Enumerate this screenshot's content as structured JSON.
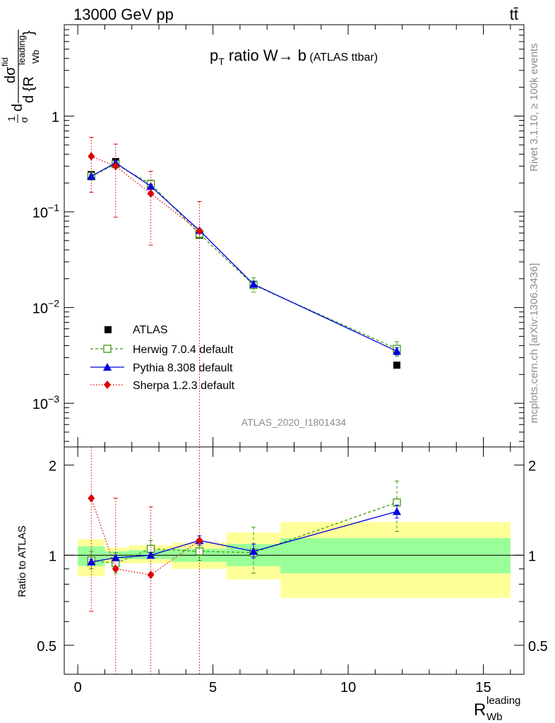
{
  "header": {
    "left": "13000 GeV pp",
    "right": "tt̄"
  },
  "side_labels": {
    "rivet": "Rivet 3.1.10, ≥ 100k events",
    "mcplots": "mcplots.cern.ch [arXiv:1306.3436]"
  },
  "chart_data": [
    {
      "type": "scatter",
      "panel": "main",
      "title_parts": {
        "p": "p",
        "sub": "T",
        "rest": " ratio W",
        "arrow": "→",
        "b": " b",
        "small": " (ATLAS ttbar)"
      },
      "ylabel_parts": {
        "frac1": "1",
        "sigma": "σ",
        "d": "d",
        "dsig": "dσ",
        "fid": "fid",
        "den": "d {R",
        "sub": "Wb",
        "sup": "leading",
        "close": "}"
      },
      "watermark": "ATLAS_2020_I1801434",
      "yscale": "log",
      "ylim": [
        0.00035,
        9
      ],
      "xlim": [
        -0.5,
        16.5
      ],
      "yticks": [
        {
          "value": 0.001,
          "base": "10",
          "exp": "−3"
        },
        {
          "value": 0.01,
          "base": "10",
          "exp": "−2"
        },
        {
          "value": 0.1,
          "base": "10",
          "exp": "−1"
        },
        {
          "value": 1,
          "base": "1",
          "exp": ""
        }
      ],
      "legend_position": "lower-left",
      "series": [
        {
          "name": "ATLAS",
          "color": "#000000",
          "marker": "square-filled",
          "line": "none",
          "x": [
            0.5,
            1.4,
            2.7,
            4.5,
            6.5,
            11.8
          ],
          "y": [
            0.245,
            0.335,
            0.185,
            0.057,
            0.0175,
            0.0025
          ],
          "yerr": [
            0,
            0,
            0,
            0,
            0,
            0
          ]
        },
        {
          "name": "Herwig 7.0.4 default",
          "color": "#3a9a14",
          "marker": "square-open",
          "line": "dashed",
          "x": [
            0.5,
            1.4,
            2.7,
            4.5,
            6.5,
            11.8
          ],
          "y": [
            0.235,
            0.315,
            0.195,
            0.059,
            0.0172,
            0.0037
          ],
          "ylow": [
            0.215,
            0.29,
            0.175,
            0.053,
            0.0145,
            0.0031
          ],
          "yhigh": [
            0.258,
            0.34,
            0.215,
            0.066,
            0.0205,
            0.0044
          ]
        },
        {
          "name": "Pythia 8.308 default",
          "color": "#0000dd",
          "marker": "triangle",
          "line": "solid",
          "x": [
            0.5,
            1.4,
            2.7,
            4.5,
            6.5,
            11.8
          ],
          "y": [
            0.235,
            0.325,
            0.185,
            0.064,
            0.0175,
            0.0035
          ],
          "ylow": [
            0.225,
            0.31,
            0.177,
            0.061,
            0.0165,
            0.0032
          ],
          "yhigh": [
            0.245,
            0.34,
            0.193,
            0.067,
            0.0185,
            0.0038
          ]
        },
        {
          "name": "Sherpa 1.2.3 default",
          "color": "#e00000",
          "marker": "diamond",
          "line": "dotted",
          "x": [
            0.5,
            1.4,
            2.7,
            4.5
          ],
          "y": [
            0.38,
            0.3,
            0.155,
            0.063
          ],
          "ylow": [
            0.16,
            0.088,
            0.045,
            0.0001
          ],
          "yhigh": [
            0.6,
            0.51,
            0.265,
            0.128
          ]
        }
      ]
    },
    {
      "type": "scatter",
      "panel": "ratio",
      "ylabel": "Ratio to ATLAS",
      "xlabel_parts": {
        "R": "R",
        "sub": "Wb",
        "sup": "leading"
      },
      "xlim": [
        -0.5,
        16.5
      ],
      "ylim": [
        0.4,
        2.3
      ],
      "xticks": [
        "0",
        "5",
        "10",
        "15"
      ],
      "yticks": [
        "0.5",
        "1",
        "2"
      ],
      "reference_line": 1,
      "bands": [
        {
          "xlow": 0,
          "xhigh": 1,
          "yellow": [
            0.85,
            1.13
          ],
          "green": [
            0.92,
            1.07
          ]
        },
        {
          "xlow": 1,
          "xhigh": 1.9,
          "yellow": [
            0.94,
            1.06
          ],
          "green": [
            0.97,
            1.03
          ]
        },
        {
          "xlow": 1.9,
          "xhigh": 3.5,
          "yellow": [
            0.94,
            1.08
          ],
          "green": [
            0.97,
            1.04
          ]
        },
        {
          "xlow": 3.5,
          "xhigh": 5.5,
          "yellow": [
            0.9,
            1.1
          ],
          "green": [
            0.95,
            1.05
          ]
        },
        {
          "xlow": 5.5,
          "xhigh": 7.5,
          "yellow": [
            0.83,
            1.19
          ],
          "green": [
            0.92,
            1.09
          ]
        },
        {
          "xlow": 7.5,
          "xhigh": 16,
          "yellow": [
            0.72,
            1.29
          ],
          "green": [
            0.87,
            1.14
          ]
        }
      ],
      "series": [
        {
          "name": "Herwig 7.0.4 default",
          "color": "#3a9a14",
          "marker": "square-open",
          "line": "dashed",
          "x": [
            0.5,
            1.4,
            2.7,
            4.5,
            6.5,
            11.8
          ],
          "y": [
            0.96,
            0.94,
            1.05,
            1.03,
            1.02,
            1.5
          ],
          "ylow": [
            0.9,
            0.87,
            0.98,
            0.96,
            0.87,
            1.2
          ],
          "yhigh": [
            1.03,
            1.02,
            1.12,
            1.11,
            1.24,
            1.77
          ]
        },
        {
          "name": "Pythia 8.308 default",
          "color": "#0000dd",
          "marker": "triangle",
          "line": "solid",
          "x": [
            0.5,
            1.4,
            2.7,
            4.5,
            6.5,
            11.8
          ],
          "y": [
            0.95,
            0.98,
            1.0,
            1.12,
            1.03,
            1.4
          ],
          "ylow": [
            0.93,
            0.96,
            0.98,
            1.08,
            0.98,
            1.33
          ],
          "yhigh": [
            0.97,
            1.0,
            1.02,
            1.16,
            1.09,
            1.47
          ]
        },
        {
          "name": "Sherpa 1.2.3 default",
          "color": "#e00000",
          "marker": "diamond",
          "line": "dotted",
          "x": [
            0.5,
            1.4,
            2.7,
            4.5
          ],
          "y": [
            1.55,
            0.9,
            0.86,
            1.12
          ],
          "ylow": [
            0.65,
            0.3,
            0.3,
            0.3
          ],
          "yhigh": [
            2.4,
            1.55,
            1.45,
            2.3
          ]
        }
      ]
    }
  ]
}
